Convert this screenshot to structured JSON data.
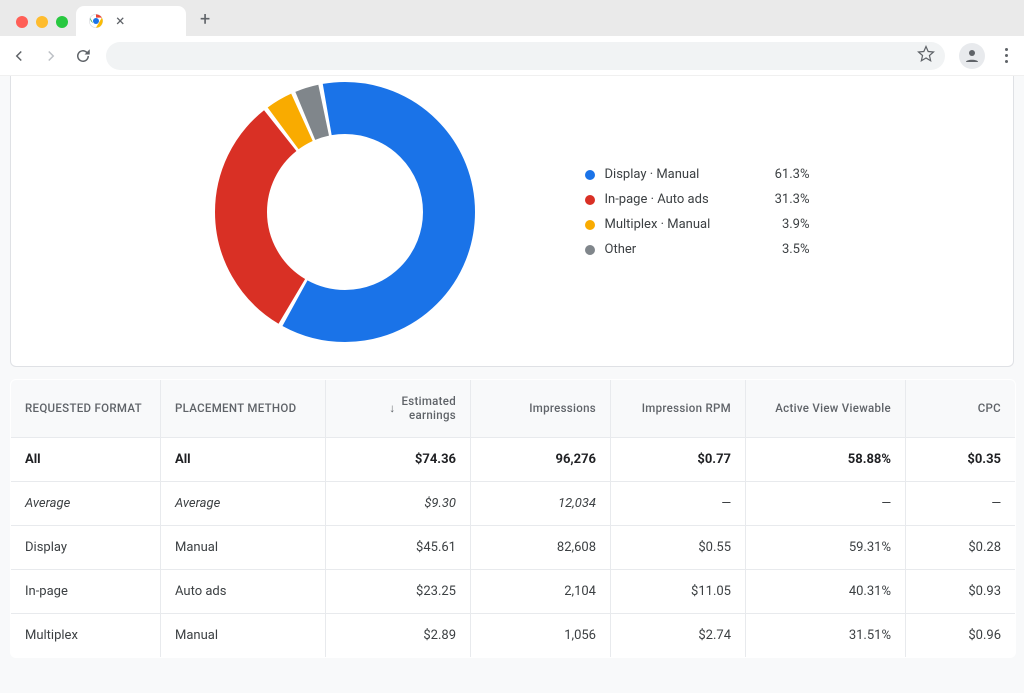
{
  "chart": {
    "type": "donut",
    "outer_radius": 130,
    "inner_radius": 78,
    "gap_deg": 2,
    "start_angle_deg": -10,
    "background": "#ffffff",
    "slices": [
      {
        "label": "Display · Manual",
        "value": 61.3,
        "display": "61.3%",
        "color": "#1a73e8"
      },
      {
        "label": "In-page · Auto ads",
        "value": 31.3,
        "display": "31.3%",
        "color": "#d93025"
      },
      {
        "label": "Multiplex · Manual",
        "value": 3.9,
        "display": "3.9%",
        "color": "#f9ab00"
      },
      {
        "label": "Other",
        "value": 3.5,
        "display": "3.5%",
        "color": "#80868b"
      }
    ]
  },
  "table": {
    "columns": [
      {
        "key": "requested_format",
        "label": "REQUESTED FORMAT",
        "align": "left"
      },
      {
        "key": "placement_method",
        "label": "PLACEMENT METHOD",
        "align": "left"
      },
      {
        "key": "estimated_earnings",
        "label": "Estimated earnings",
        "align": "right",
        "sort": "desc"
      },
      {
        "key": "impressions",
        "label": "Impressions",
        "align": "right"
      },
      {
        "key": "impression_rpm",
        "label": "Impression RPM",
        "align": "right"
      },
      {
        "key": "active_view",
        "label": "Active View Viewable",
        "align": "right"
      },
      {
        "key": "cpc",
        "label": "CPC",
        "align": "right"
      }
    ],
    "rows": [
      {
        "style": "bold",
        "cells": [
          "All",
          "All",
          "$74.36",
          "96,276",
          "$0.77",
          "58.88%",
          "$0.35"
        ]
      },
      {
        "style": "italic",
        "cells": [
          "Average",
          "Average",
          "$9.30",
          "12,034",
          "—",
          "—",
          "—"
        ]
      },
      {
        "style": "normal",
        "cells": [
          "Display",
          "Manual",
          "$45.61",
          "82,608",
          "$0.55",
          "59.31%",
          "$0.28"
        ]
      },
      {
        "style": "normal",
        "cells": [
          "In-page",
          "Auto ads",
          "$23.25",
          "2,104",
          "$11.05",
          "40.31%",
          "$0.93"
        ]
      },
      {
        "style": "normal",
        "cells": [
          "Multiplex",
          "Manual",
          "$2.89",
          "1,056",
          "$2.74",
          "31.51%",
          "$0.96"
        ]
      }
    ]
  }
}
